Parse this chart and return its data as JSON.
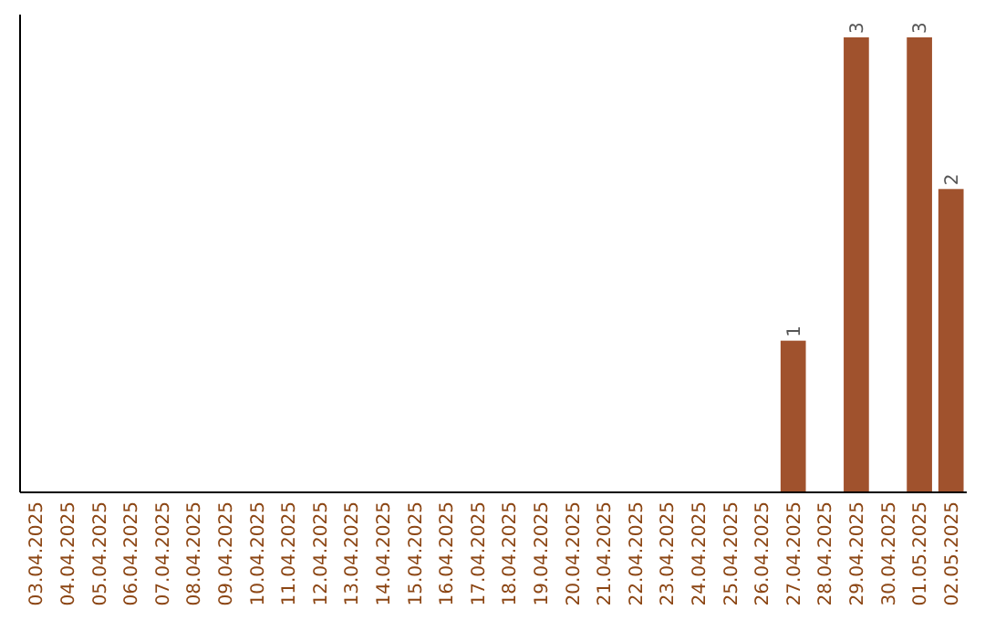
{
  "chart_data": {
    "type": "bar",
    "categories": [
      "03.04.2025",
      "04.04.2025",
      "05.04.2025",
      "06.04.2025",
      "07.04.2025",
      "08.04.2025",
      "09.04.2025",
      "10.04.2025",
      "11.04.2025",
      "12.04.2025",
      "13.04.2025",
      "14.04.2025",
      "15.04.2025",
      "16.04.2025",
      "17.04.2025",
      "18.04.2025",
      "19.04.2025",
      "20.04.2025",
      "21.04.2025",
      "22.04.2025",
      "23.04.2025",
      "24.04.2025",
      "25.04.2025",
      "26.04.2025",
      "27.04.2025",
      "28.04.2025",
      "29.04.2025",
      "30.04.2025",
      "01.05.2025",
      "02.05.2025"
    ],
    "values": [
      null,
      null,
      null,
      null,
      null,
      null,
      null,
      null,
      null,
      null,
      null,
      null,
      null,
      null,
      null,
      null,
      null,
      null,
      null,
      null,
      null,
      null,
      null,
      null,
      1,
      null,
      3,
      null,
      3,
      2
    ],
    "value_labels": [
      null,
      null,
      null,
      null,
      null,
      null,
      null,
      null,
      null,
      null,
      null,
      null,
      null,
      null,
      null,
      null,
      null,
      null,
      null,
      null,
      null,
      null,
      null,
      null,
      "1",
      null,
      "3",
      null,
      "3",
      "2"
    ],
    "color": "#a0522d"
  }
}
